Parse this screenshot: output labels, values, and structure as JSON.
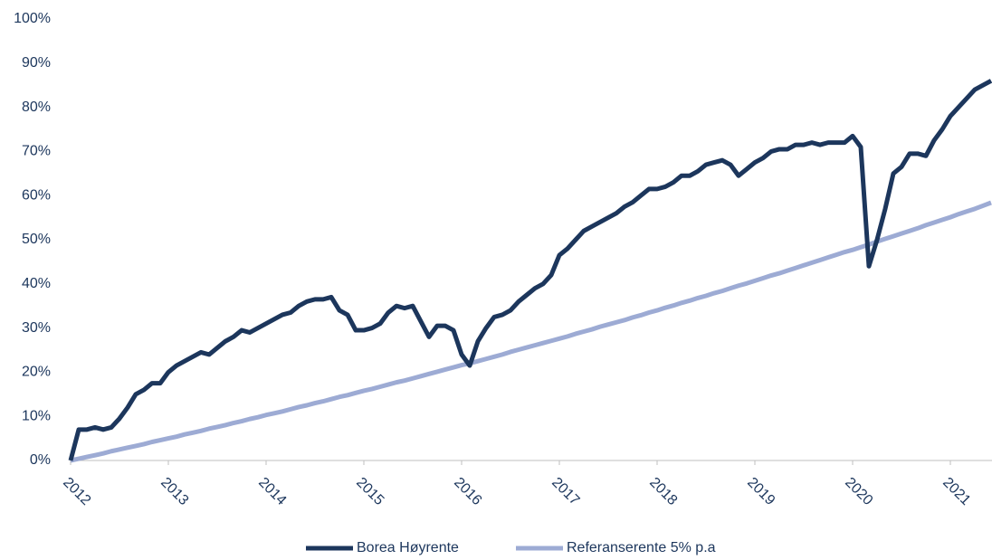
{
  "chart_data": {
    "type": "line",
    "categories": [
      "2012",
      null,
      null,
      null,
      null,
      null,
      null,
      null,
      null,
      null,
      null,
      null,
      "2013",
      null,
      null,
      null,
      null,
      null,
      null,
      null,
      null,
      null,
      null,
      null,
      "2014",
      null,
      null,
      null,
      null,
      null,
      null,
      null,
      null,
      null,
      null,
      null,
      "2015",
      null,
      null,
      null,
      null,
      null,
      null,
      null,
      null,
      null,
      null,
      null,
      "2016",
      null,
      null,
      null,
      null,
      null,
      null,
      null,
      null,
      null,
      null,
      null,
      "2017",
      null,
      null,
      null,
      null,
      null,
      null,
      null,
      null,
      null,
      null,
      null,
      "2018",
      null,
      null,
      null,
      null,
      null,
      null,
      null,
      null,
      null,
      null,
      null,
      "2019",
      null,
      null,
      null,
      null,
      null,
      null,
      null,
      null,
      null,
      null,
      null,
      "2020",
      null,
      null,
      null,
      null,
      null,
      null,
      null,
      null,
      null,
      null,
      null,
      "2021",
      null,
      null,
      null,
      null,
      null
    ],
    "series": [
      {
        "name": "Borea Høyrente",
        "color": "#1c365c",
        "values": [
          0,
          7,
          7,
          7.5,
          7,
          7.5,
          9.5,
          12,
          15,
          16,
          17.5,
          17.5,
          20,
          21.5,
          22.5,
          23.5,
          24.5,
          24,
          25.5,
          27,
          28,
          29.5,
          29,
          30,
          31,
          32,
          33,
          33.5,
          35,
          36,
          36.5,
          36.5,
          37,
          34,
          33,
          29.5,
          29.5,
          30,
          31,
          33.5,
          35,
          34.5,
          35,
          31.5,
          28,
          30.5,
          30.5,
          29.5,
          24,
          21.5,
          27,
          30,
          32.5,
          33,
          34,
          36,
          37.5,
          39,
          40,
          42,
          46.5,
          48,
          50,
          52,
          53,
          54,
          55,
          56,
          57.5,
          58.5,
          60,
          61.5,
          61.5,
          62,
          63,
          64.5,
          64.5,
          65.5,
          67,
          67.5,
          68,
          67,
          64.5,
          66,
          67.5,
          68.5,
          70,
          70.5,
          70.5,
          71.5,
          71.5,
          72,
          71.5,
          72,
          72,
          72,
          73.5,
          71,
          44,
          50,
          57,
          65,
          66.5,
          69.5,
          69.5,
          69,
          72.5,
          75,
          78,
          80,
          82,
          84,
          85,
          86
        ]
      },
      {
        "name": "Referanserente 5% p.a",
        "color": "#9dabd4",
        "values": [
          0,
          0.4,
          0.8,
          1.2,
          1.6,
          2.1,
          2.5,
          2.9,
          3.3,
          3.7,
          4.2,
          4.6,
          5,
          5.4,
          5.9,
          6.3,
          6.7,
          7.2,
          7.6,
          8.0,
          8.5,
          8.9,
          9.4,
          9.8,
          10.3,
          10.7,
          11.1,
          11.6,
          12.1,
          12.5,
          13.0,
          13.4,
          13.9,
          14.4,
          14.8,
          15.3,
          15.8,
          16.2,
          16.7,
          17.2,
          17.7,
          18.1,
          18.6,
          19.1,
          19.6,
          20.1,
          20.6,
          21.1,
          21.6,
          22.0,
          22.5,
          23.0,
          23.5,
          24.0,
          24.6,
          25.1,
          25.6,
          26.1,
          26.6,
          27.1,
          27.6,
          28.1,
          28.7,
          29.2,
          29.7,
          30.3,
          30.8,
          31.3,
          31.8,
          32.4,
          32.9,
          33.5,
          34.0,
          34.6,
          35.1,
          35.7,
          36.2,
          36.8,
          37.3,
          37.9,
          38.4,
          39.0,
          39.6,
          40.1,
          40.7,
          41.3,
          41.9,
          42.4,
          43.0,
          43.6,
          44.2,
          44.8,
          45.4,
          46.0,
          46.6,
          47.2,
          47.7,
          48.3,
          48.9,
          49.6,
          50.2,
          50.8,
          51.4,
          52.0,
          52.6,
          53.3,
          53.9,
          54.5,
          55.1,
          55.8,
          56.4,
          57.0,
          57.7,
          58.4
        ]
      }
    ],
    "ylim": [
      0,
      100
    ],
    "yticks": [
      {
        "value": 0,
        "label": "0%"
      },
      {
        "value": 10,
        "label": "10%"
      },
      {
        "value": 20,
        "label": "20%"
      },
      {
        "value": 30,
        "label": "30%"
      },
      {
        "value": 40,
        "label": "40%"
      },
      {
        "value": 50,
        "label": "50%"
      },
      {
        "value": 60,
        "label": "60%"
      },
      {
        "value": 70,
        "label": "70%"
      },
      {
        "value": 80,
        "label": "80%"
      },
      {
        "value": 90,
        "label": "90%"
      },
      {
        "value": 100,
        "label": "100%"
      }
    ],
    "grid": false,
    "legend": "bottom"
  }
}
